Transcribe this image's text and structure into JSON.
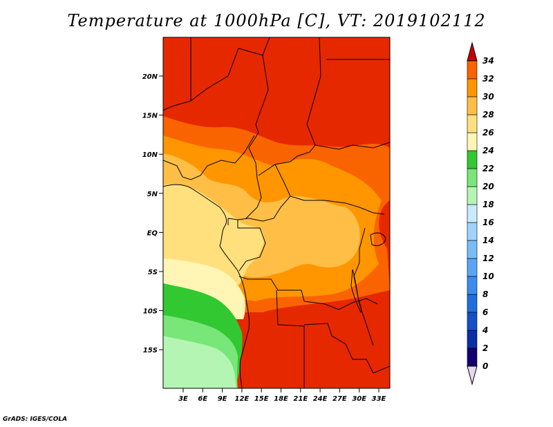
{
  "title": "Temperature at 1000hPa [C], VT: 2019102112",
  "credit": "GrADS: IGES/COLA",
  "map": {
    "lat_labels": [
      "20N",
      "15N",
      "10N",
      "5N",
      "EQ",
      "5S",
      "10S",
      "15S"
    ],
    "lon_labels": [
      "3E",
      "6E",
      "9E",
      "12E",
      "15E",
      "18E",
      "21E",
      "24E",
      "27E",
      "30E",
      "33E"
    ]
  },
  "colorbar": {
    "levels": [
      "0",
      "2",
      "4",
      "6",
      "8",
      "10",
      "12",
      "14",
      "16",
      "18",
      "20",
      "22",
      "24",
      "26",
      "28",
      "30",
      "32",
      "34"
    ],
    "colors": [
      "#140070",
      "#0a2fa8",
      "#1450c8",
      "#1e6ee0",
      "#3c8cf0",
      "#5aa5f5",
      "#78bdfa",
      "#a0d2ff",
      "#c8ebff",
      "#b4f5b4",
      "#78e678",
      "#32c832",
      "#fff5b4",
      "#ffe07d",
      "#ffbe46",
      "#ff9600",
      "#fa6400",
      "#e62800",
      "#c80000"
    ],
    "under_color": "#e6d7f0"
  }
}
